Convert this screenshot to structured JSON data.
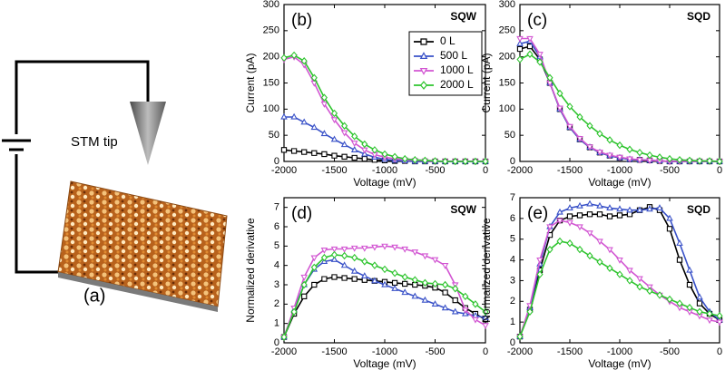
{
  "diagram": {
    "tip_label": "STM tip",
    "panel_label": "(a)"
  },
  "chart_data": [
    {
      "type": "line",
      "panel_label": "(b)",
      "annotation": "SQW",
      "x_label": "Voltage (mV)",
      "y_label": "Current (pA)",
      "xlim": [
        -2000,
        0
      ],
      "ylim": [
        0,
        300
      ],
      "xticks": [
        -2000,
        -1500,
        -1000,
        -500,
        0
      ],
      "yticks": [
        0,
        50,
        100,
        150,
        200,
        250,
        300
      ],
      "legend": "upper right",
      "x": [
        -2000,
        -1900,
        -1800,
        -1700,
        -1600,
        -1500,
        -1400,
        -1300,
        -1200,
        -1100,
        -1000,
        -900,
        -800,
        -700,
        -600,
        -500,
        -400,
        -300,
        -200,
        -100,
        0
      ],
      "series": [
        {
          "name": "0 L",
          "color": "#000000",
          "marker": "square",
          "values": [
            22,
            20,
            18,
            16,
            14,
            11,
            9,
            7,
            5,
            3,
            2,
            1,
            1,
            0,
            0,
            0,
            0,
            0,
            0,
            0,
            0
          ]
        },
        {
          "name": "500 L",
          "color": "#3a52c8",
          "marker": "triangle-up",
          "values": [
            85,
            85,
            75,
            65,
            53,
            42,
            32,
            22,
            14,
            8,
            4,
            2,
            1,
            0,
            0,
            0,
            0,
            0,
            0,
            0,
            0
          ]
        },
        {
          "name": "1000 L",
          "color": "#d256d2",
          "marker": "triangle-down",
          "values": [
            195,
            200,
            185,
            150,
            110,
            80,
            55,
            35,
            22,
            13,
            8,
            5,
            3,
            2,
            1,
            0,
            0,
            0,
            0,
            0,
            0
          ]
        },
        {
          "name": "2000 L",
          "color": "#2ec42e",
          "marker": "diamond",
          "values": [
            198,
            203,
            192,
            160,
            122,
            92,
            68,
            48,
            33,
            22,
            14,
            9,
            5,
            3,
            2,
            1,
            0,
            0,
            0,
            0,
            0
          ]
        }
      ]
    },
    {
      "type": "line",
      "panel_label": "(c)",
      "annotation": "SQD",
      "x_label": "Voltage (mV)",
      "y_label": "Current (pA)",
      "xlim": [
        -2000,
        0
      ],
      "ylim": [
        0,
        300
      ],
      "xticks": [
        -2000,
        -1500,
        -1000,
        -500,
        0
      ],
      "yticks": [
        0,
        50,
        100,
        150,
        200,
        250,
        300
      ],
      "x": [
        -2000,
        -1900,
        -1800,
        -1700,
        -1600,
        -1500,
        -1400,
        -1300,
        -1200,
        -1100,
        -1000,
        -900,
        -800,
        -700,
        -600,
        -500,
        -400,
        -300,
        -200,
        -100,
        0
      ],
      "series": [
        {
          "color": "#000000",
          "marker": "square",
          "values": [
            215,
            220,
            195,
            150,
            100,
            65,
            42,
            27,
            17,
            11,
            7,
            4,
            3,
            2,
            1,
            0,
            0,
            0,
            0,
            0,
            0
          ]
        },
        {
          "color": "#3a52c8",
          "marker": "triangle-up",
          "values": [
            225,
            230,
            200,
            150,
            100,
            65,
            42,
            27,
            17,
            11,
            7,
            4,
            3,
            2,
            1,
            0,
            0,
            0,
            0,
            0,
            0
          ]
        },
        {
          "color": "#d256d2",
          "marker": "triangle-down",
          "values": [
            235,
            235,
            205,
            150,
            102,
            67,
            44,
            28,
            18,
            12,
            8,
            5,
            3,
            2,
            1,
            0,
            0,
            0,
            0,
            0,
            0
          ]
        },
        {
          "color": "#2ec42e",
          "marker": "diamond",
          "values": [
            195,
            205,
            190,
            160,
            130,
            105,
            85,
            68,
            53,
            41,
            31,
            23,
            17,
            12,
            8,
            5,
            3,
            2,
            1,
            1,
            0
          ]
        }
      ]
    },
    {
      "type": "line",
      "panel_label": "(d)",
      "annotation": "SQW",
      "x_label": "Voltage (mV)",
      "y_label": "Normalized derivative",
      "xlim": [
        -2000,
        0
      ],
      "ylim": [
        0,
        7.5
      ],
      "xticks": [
        -2000,
        -1500,
        -1000,
        -500,
        0
      ],
      "yticks": [
        0,
        1,
        2,
        3,
        4,
        5,
        6,
        7
      ],
      "x": [
        -2000,
        -1900,
        -1800,
        -1700,
        -1600,
        -1500,
        -1400,
        -1300,
        -1200,
        -1100,
        -1000,
        -900,
        -800,
        -700,
        -600,
        -500,
        -400,
        -300,
        -200,
        -100,
        0
      ],
      "series": [
        {
          "color": "#000000",
          "marker": "square",
          "values": [
            0.3,
            1.5,
            2.4,
            3.0,
            3.3,
            3.4,
            3.35,
            3.3,
            3.25,
            3.2,
            3.15,
            3.1,
            3.05,
            3.0,
            2.95,
            2.85,
            2.6,
            2.2,
            1.8,
            1.5,
            1.2
          ]
        },
        {
          "color": "#3a52c8",
          "marker": "triangle-up",
          "values": [
            0.3,
            1.7,
            3.0,
            3.8,
            4.2,
            4.3,
            4.0,
            3.7,
            3.45,
            3.2,
            3.0,
            2.8,
            2.6,
            2.4,
            2.2,
            2.0,
            1.8,
            1.6,
            1.5,
            1.4,
            1.3
          ]
        },
        {
          "color": "#d256d2",
          "marker": "triangle-down",
          "values": [
            0.3,
            1.8,
            3.4,
            4.4,
            4.8,
            4.85,
            4.85,
            4.9,
            4.9,
            4.95,
            5.0,
            4.95,
            4.85,
            4.7,
            4.5,
            4.3,
            4.0,
            3.0,
            1.7,
            1.2,
            0.9
          ]
        },
        {
          "color": "#2ec42e",
          "marker": "diamond",
          "values": [
            0.3,
            1.6,
            3.0,
            3.9,
            4.4,
            4.55,
            4.5,
            4.4,
            4.2,
            4.0,
            3.8,
            3.6,
            3.4,
            3.25,
            3.1,
            3.05,
            3.0,
            2.8,
            2.4,
            2.0,
            1.6
          ]
        }
      ]
    },
    {
      "type": "line",
      "panel_label": "(e)",
      "annotation": "SQD",
      "x_label": "Voltage (mV)",
      "y_label": "Normalized derivative",
      "xlim": [
        -2000,
        0
      ],
      "ylim": [
        0,
        7
      ],
      "xticks": [
        -2000,
        -1500,
        -1000,
        -500,
        0
      ],
      "yticks": [
        0,
        1,
        2,
        3,
        4,
        5,
        6,
        7
      ],
      "x": [
        -2000,
        -1900,
        -1800,
        -1700,
        -1600,
        -1500,
        -1400,
        -1300,
        -1200,
        -1100,
        -1000,
        -900,
        -800,
        -700,
        -600,
        -500,
        -400,
        -300,
        -200,
        -100,
        0
      ],
      "series": [
        {
          "color": "#000000",
          "marker": "square",
          "values": [
            0.3,
            1.6,
            3.5,
            5.2,
            5.9,
            6.1,
            6.15,
            6.2,
            6.2,
            6.1,
            6.15,
            6.2,
            6.4,
            6.55,
            6.4,
            5.5,
            4.0,
            2.8,
            1.9,
            1.4,
            1.1
          ]
        },
        {
          "color": "#3a52c8",
          "marker": "triangle-up",
          "values": [
            0.3,
            1.7,
            3.8,
            5.6,
            6.3,
            6.5,
            6.6,
            6.7,
            6.6,
            6.5,
            6.45,
            6.4,
            6.4,
            6.45,
            6.5,
            6.0,
            4.8,
            3.5,
            2.2,
            1.5,
            1.1
          ]
        },
        {
          "color": "#d256d2",
          "marker": "triangle-down",
          "values": [
            0.3,
            1.8,
            4.0,
            5.6,
            5.9,
            5.8,
            5.6,
            5.3,
            4.9,
            4.5,
            4.0,
            3.5,
            3.1,
            2.7,
            2.3,
            2.0,
            1.7,
            1.5,
            1.3,
            1.1,
            1.0
          ]
        },
        {
          "color": "#2ec42e",
          "marker": "diamond",
          "values": [
            0.3,
            1.5,
            3.3,
            4.5,
            4.9,
            4.8,
            4.5,
            4.2,
            3.9,
            3.6,
            3.3,
            3.0,
            2.7,
            2.5,
            2.3,
            2.1,
            1.9,
            1.7,
            1.5,
            1.4,
            1.3
          ]
        }
      ]
    }
  ]
}
